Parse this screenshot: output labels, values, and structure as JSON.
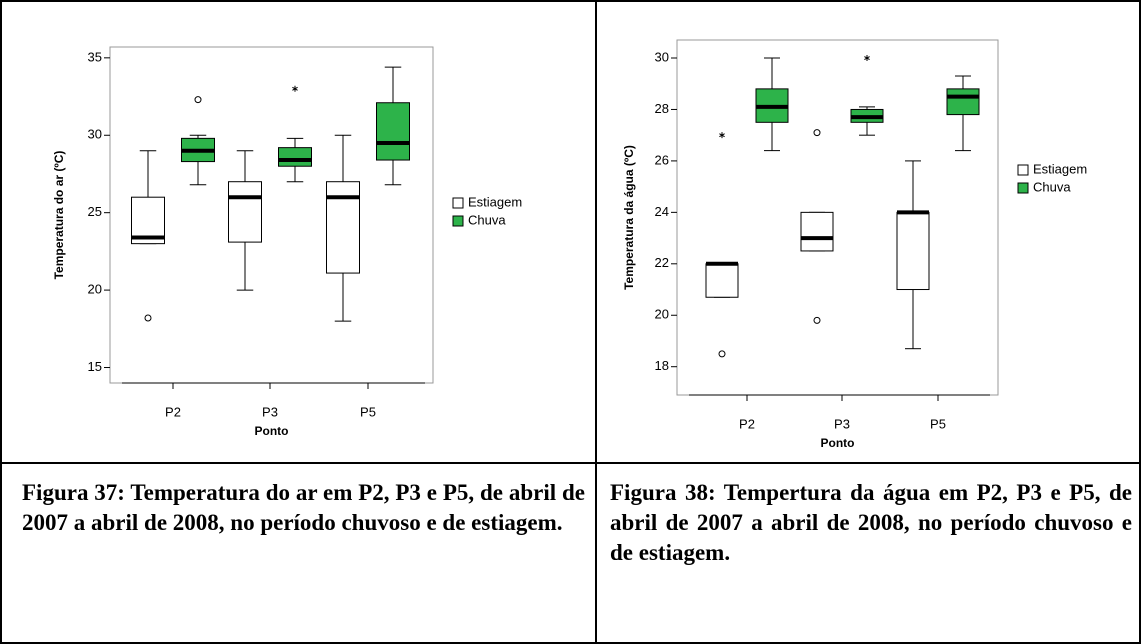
{
  "chart_data": [
    {
      "type": "box",
      "ylabel": "Temperatura do ar (ºC)",
      "xlabel": "Ponto",
      "categories": [
        "P2",
        "P3",
        "P5"
      ],
      "ylim": [
        14.0,
        35.7
      ],
      "yticks": [
        15,
        20,
        25,
        30,
        35
      ],
      "series": [
        {
          "name": "Estiagem",
          "color": "#ffffff",
          "values": [
            {
              "min": 23.0,
              "q1": 23.0,
              "median": 23.4,
              "q3": 26.0,
              "max": 29.0,
              "outliers": [
                18.2
              ],
              "extremes": []
            },
            {
              "min": 20.0,
              "q1": 23.1,
              "median": 26.0,
              "q3": 27.0,
              "max": 29.0,
              "outliers": [],
              "extremes": []
            },
            {
              "min": 18.0,
              "q1": 21.1,
              "median": 26.0,
              "q3": 27.0,
              "max": 30.0,
              "outliers": [],
              "extremes": []
            }
          ]
        },
        {
          "name": "Chuva",
          "color": "#2db34a",
          "values": [
            {
              "min": 26.8,
              "q1": 28.3,
              "median": 29.0,
              "q3": 29.8,
              "max": 30.0,
              "outliers": [
                32.3
              ],
              "extremes": []
            },
            {
              "min": 27.0,
              "q1": 28.0,
              "median": 28.4,
              "q3": 29.2,
              "max": 29.8,
              "outliers": [],
              "extremes": [
                33.0
              ]
            },
            {
              "min": 26.8,
              "q1": 28.4,
              "median": 29.5,
              "q3": 32.1,
              "max": 34.4,
              "outliers": [],
              "extremes": []
            }
          ]
        }
      ]
    },
    {
      "type": "box",
      "ylabel": "Temperatura da água (ºC)",
      "xlabel": "Ponto",
      "categories": [
        "P2",
        "P3",
        "P5"
      ],
      "ylim": [
        16.9,
        30.7
      ],
      "yticks": [
        18,
        20,
        22,
        24,
        26,
        28,
        30
      ],
      "series": [
        {
          "name": "Estiagem",
          "color": "#ffffff",
          "values": [
            {
              "min": 20.7,
              "q1": 20.7,
              "median": 22.0,
              "q3": 22.0,
              "max": 22.0,
              "outliers": [
                18.5
              ],
              "extremes": [
                27.0
              ]
            },
            {
              "min": 22.5,
              "q1": 22.5,
              "median": 23.0,
              "q3": 24.0,
              "max": 24.0,
              "outliers": [
                27.1,
                19.8
              ],
              "extremes": []
            },
            {
              "min": 18.7,
              "q1": 21.0,
              "median": 24.0,
              "q3": 24.0,
              "max": 26.0,
              "outliers": [],
              "extremes": []
            }
          ]
        },
        {
          "name": "Chuva",
          "color": "#2db34a",
          "values": [
            {
              "min": 26.4,
              "q1": 27.5,
              "median": 28.1,
              "q3": 28.8,
              "max": 30.0,
              "outliers": [],
              "extremes": []
            },
            {
              "min": 27.0,
              "q1": 27.5,
              "median": 27.7,
              "q3": 28.0,
              "max": 28.1,
              "outliers": [],
              "extremes": [
                30.0
              ]
            },
            {
              "min": 26.4,
              "q1": 27.8,
              "median": 28.5,
              "q3": 28.8,
              "max": 29.3,
              "outliers": [],
              "extremes": []
            }
          ]
        }
      ]
    }
  ],
  "captions": [
    "Figura 37: Temperatura do ar em P2, P3 e P5, de abril de 2007 a abril de 2008, no período chuvoso e de estiagem.",
    "Figura 38: Tempertura da água em P2, P3 e P5, de abril de 2007 a abril de 2008, no período chuvoso e de estiagem."
  ]
}
